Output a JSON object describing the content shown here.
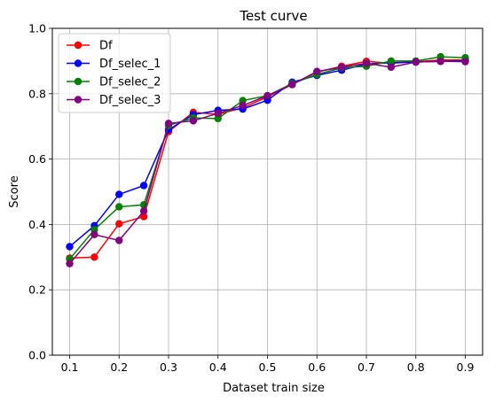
{
  "chart_data": {
    "type": "line",
    "title": "Test curve",
    "xlabel": "Dataset train size",
    "ylabel": "Score",
    "xlim": [
      0.065,
      0.935
    ],
    "ylim": [
      0.0,
      1.0
    ],
    "xticks": [
      "0.1",
      "0.2",
      "0.3",
      "0.4",
      "0.5",
      "0.6",
      "0.7",
      "0.8",
      "0.9"
    ],
    "yticks": [
      "0.0",
      "0.2",
      "0.4",
      "0.6",
      "0.8",
      "1.0"
    ],
    "grid": true,
    "legend_position": "top-left",
    "x": [
      0.1,
      0.15,
      0.2,
      0.25,
      0.3,
      0.35,
      0.4,
      0.45,
      0.5,
      0.55,
      0.6,
      0.65,
      0.7,
      0.75,
      0.8,
      0.85,
      0.9
    ],
    "series": [
      {
        "name": "Df",
        "color": "#ff0000",
        "values": [
          0.297,
          0.3,
          0.402,
          0.424,
          0.684,
          0.743,
          0.737,
          0.757,
          0.79,
          0.828,
          0.866,
          0.884,
          0.899,
          0.893,
          0.898,
          0.903,
          0.903
        ]
      },
      {
        "name": "Df_selec_1",
        "color": "#0000ff",
        "values": [
          0.332,
          0.396,
          0.492,
          0.519,
          0.69,
          0.736,
          0.749,
          0.753,
          0.78,
          0.835,
          0.856,
          0.872,
          0.891,
          0.895,
          0.897,
          0.899,
          0.901
        ]
      },
      {
        "name": "Df_selec_2",
        "color": "#008000",
        "values": [
          0.294,
          0.384,
          0.454,
          0.46,
          0.703,
          0.726,
          0.724,
          0.779,
          0.794,
          0.831,
          0.859,
          0.879,
          0.884,
          0.9,
          0.9,
          0.913,
          0.91
        ]
      },
      {
        "name": "Df_selec_3",
        "color": "#800080",
        "values": [
          0.28,
          0.369,
          0.351,
          0.441,
          0.709,
          0.717,
          0.74,
          0.764,
          0.794,
          0.828,
          0.868,
          0.881,
          0.893,
          0.881,
          0.897,
          0.899,
          0.898
        ]
      }
    ]
  }
}
